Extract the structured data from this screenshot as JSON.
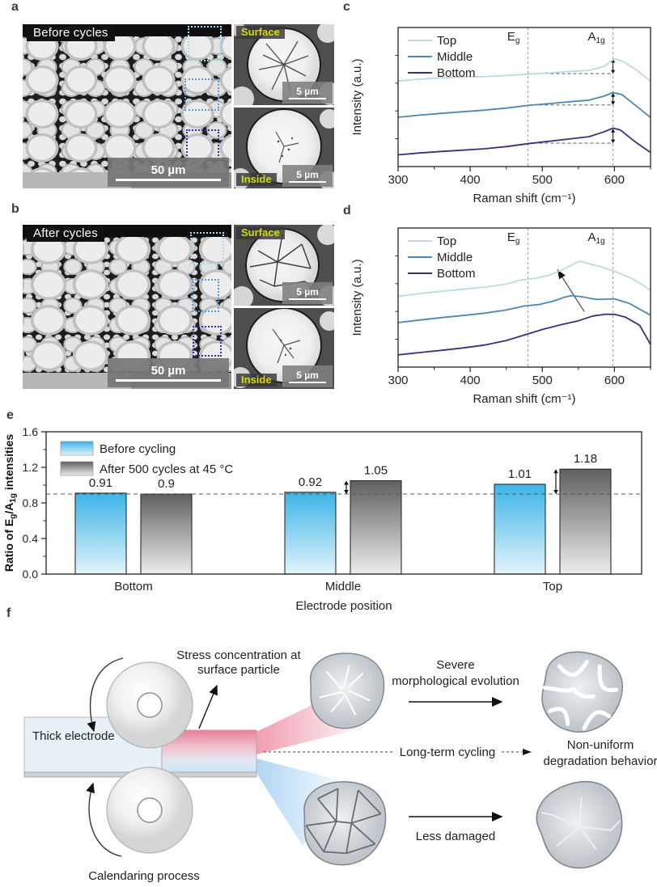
{
  "labels": {
    "a": "a",
    "b": "b",
    "c": "c",
    "d": "d",
    "e": "e",
    "f": "f"
  },
  "colors": {
    "dotted_boxes": [
      "#a8dcf0",
      "#5b9bd5",
      "#3232a8"
    ],
    "inset_label": "#d6de00",
    "spectra_series": [
      "#bcd9e4",
      "#4e86b4",
      "#33337b"
    ],
    "bar_blue_top": "#3cb4e7",
    "bar_blue_bottom": "#e2f4fc",
    "bar_gray_top": "#5f5f5f",
    "bar_gray_bottom": "#ededed"
  },
  "panel_a": {
    "tag": "Before cycles",
    "scale_main": "50 µm",
    "insets": [
      {
        "label": "Surface",
        "scale": "5 µm"
      },
      {
        "label": "Inside",
        "scale": "5 µm"
      }
    ]
  },
  "panel_b": {
    "tag": "After cycles",
    "scale_main": "50 µm",
    "insets": [
      {
        "label": "Surface",
        "scale": "5 µm"
      },
      {
        "label": "Inside",
        "scale": "5 µm"
      }
    ]
  },
  "chart_data": [
    {
      "panel": "c",
      "type": "line",
      "xlabel": "Raman shift (cm⁻¹)",
      "ylabel": "Intensity (a.u.)",
      "xlim": [
        300,
        650
      ],
      "xticks": [
        300,
        400,
        500,
        600
      ],
      "minor_xticks": [
        350,
        450,
        550,
        650
      ],
      "legend": [
        "Top",
        "Middle",
        "Bottom"
      ],
      "legend_position": "top-left",
      "grid": false,
      "eg": {
        "main": "E",
        "sub": "g",
        "x": 480
      },
      "a1g": {
        "main": "A",
        "sub": "1g",
        "x": 598
      },
      "annotation": "ratio-steps",
      "series": [
        {
          "name": "Top",
          "points": [
            [
              300,
              0.615
            ],
            [
              330,
              0.625
            ],
            [
              360,
              0.633
            ],
            [
              390,
              0.641
            ],
            [
              420,
              0.649
            ],
            [
              450,
              0.659
            ],
            [
              480,
              0.668
            ],
            [
              510,
              0.673
            ],
            [
              540,
              0.68
            ],
            [
              565,
              0.693
            ],
            [
              585,
              0.716
            ],
            [
              600,
              0.775
            ],
            [
              612,
              0.752
            ],
            [
              630,
              0.7
            ],
            [
              650,
              0.612
            ]
          ]
        },
        {
          "name": "Middle",
          "points": [
            [
              300,
              0.355
            ],
            [
              330,
              0.366
            ],
            [
              360,
              0.378
            ],
            [
              390,
              0.392
            ],
            [
              420,
              0.408
            ],
            [
              450,
              0.425
            ],
            [
              480,
              0.443
            ],
            [
              510,
              0.452
            ],
            [
              540,
              0.463
            ],
            [
              565,
              0.479
            ],
            [
              585,
              0.503
            ],
            [
              598,
              0.528
            ],
            [
              610,
              0.515
            ],
            [
              630,
              0.44
            ],
            [
              650,
              0.352
            ]
          ]
        },
        {
          "name": "Bottom",
          "points": [
            [
              300,
              0.085
            ],
            [
              330,
              0.094
            ],
            [
              360,
              0.104
            ],
            [
              390,
              0.116
            ],
            [
              420,
              0.13
            ],
            [
              450,
              0.148
            ],
            [
              480,
              0.168
            ],
            [
              510,
              0.181
            ],
            [
              540,
              0.196
            ],
            [
              565,
              0.216
            ],
            [
              585,
              0.246
            ],
            [
              598,
              0.272
            ],
            [
              608,
              0.262
            ],
            [
              630,
              0.176
            ],
            [
              650,
              0.1
            ]
          ]
        }
      ]
    },
    {
      "panel": "d",
      "type": "line",
      "xlabel": "Raman shift (cm⁻¹)",
      "ylabel": "Intensity (a.u.)",
      "xlim": [
        300,
        650
      ],
      "xticks": [
        300,
        400,
        500,
        600
      ],
      "minor_xticks": [
        350,
        450,
        550,
        650
      ],
      "legend": [
        "Top",
        "Middle",
        "Bottom"
      ],
      "legend_position": "top-left",
      "grid": false,
      "eg": {
        "main": "E",
        "sub": "g",
        "x": 480
      },
      "a1g": {
        "main": "A",
        "sub": "1g",
        "x": 598
      },
      "annotation": "shift-arrow",
      "arrow": {
        "from": [
          558,
          0.4
        ],
        "to": [
          521,
          0.7
        ]
      },
      "series": [
        {
          "name": "Top",
          "points": [
            [
              300,
              0.51
            ],
            [
              330,
              0.525
            ],
            [
              360,
              0.541
            ],
            [
              390,
              0.558
            ],
            [
              420,
              0.577
            ],
            [
              450,
              0.601
            ],
            [
              470,
              0.622
            ],
            [
              490,
              0.64
            ],
            [
              510,
              0.661
            ],
            [
              530,
              0.703
            ],
            [
              545,
              0.748
            ],
            [
              553,
              0.758
            ],
            [
              563,
              0.75
            ],
            [
              580,
              0.722
            ],
            [
              600,
              0.688
            ],
            [
              625,
              0.63
            ],
            [
              650,
              0.552
            ]
          ]
        },
        {
          "name": "Middle",
          "points": [
            [
              300,
              0.32
            ],
            [
              330,
              0.335
            ],
            [
              360,
              0.351
            ],
            [
              390,
              0.369
            ],
            [
              420,
              0.39
            ],
            [
              450,
              0.415
            ],
            [
              475,
              0.44
            ],
            [
              495,
              0.451
            ],
            [
              515,
              0.471
            ],
            [
              530,
              0.5
            ],
            [
              540,
              0.51
            ],
            [
              555,
              0.501
            ],
            [
              575,
              0.49
            ],
            [
              600,
              0.49
            ],
            [
              620,
              0.462
            ],
            [
              650,
              0.372
            ]
          ]
        },
        {
          "name": "Bottom",
          "points": [
            [
              300,
              0.088
            ],
            [
              330,
              0.101
            ],
            [
              360,
              0.116
            ],
            [
              390,
              0.136
            ],
            [
              420,
              0.161
            ],
            [
              450,
              0.196
            ],
            [
              475,
              0.231
            ],
            [
              500,
              0.266
            ],
            [
              525,
              0.301
            ],
            [
              550,
              0.336
            ],
            [
              570,
              0.363
            ],
            [
              588,
              0.383
            ],
            [
              600,
              0.378
            ],
            [
              615,
              0.361
            ],
            [
              635,
              0.301
            ],
            [
              650,
              0.162
            ]
          ]
        }
      ]
    },
    {
      "panel": "e",
      "type": "bar",
      "categories": [
        "Bottom",
        "Middle",
        "Top"
      ],
      "series": [
        {
          "name": "Before cycling",
          "values": [
            0.91,
            0.92,
            1.01
          ]
        },
        {
          "name": "After 500 cycles at 45 °C",
          "values": [
            0.9,
            1.05,
            1.18
          ]
        }
      ],
      "value_labels": [
        [
          "0.91",
          "0.9"
        ],
        [
          "0.92",
          "1.05"
        ],
        [
          "1.01",
          "1.18"
        ]
      ],
      "ylim": [
        0,
        1.6
      ],
      "yticks": [
        0,
        0.4,
        0.8,
        1.2,
        1.6
      ],
      "ytick_labels": [
        "0.0",
        "0.4",
        "0.8",
        "1.2",
        "1.6"
      ],
      "minor_yticks": [
        0.2,
        0.6,
        1.0,
        1.4
      ],
      "baseline": 0.9,
      "xlabel": "Electrode position",
      "ylabel_parts": [
        {
          "t": "Ratio of E"
        },
        {
          "t": "g",
          "sub": true
        },
        {
          "t": "/A"
        },
        {
          "t": "1g",
          "sub": true
        },
        {
          "t": " intensities"
        }
      ],
      "diff_arrows": [
        {
          "category": "Middle",
          "from": 0.9,
          "to": 1.05
        },
        {
          "category": "Top",
          "from": 0.9,
          "to": 1.18
        }
      ],
      "legend_position": "top-left",
      "grid": false
    }
  ],
  "panel_f": {
    "thick_electrode": "Thick electrode",
    "stress_line1": "Stress concentration at",
    "stress_line2": "surface particle",
    "calendaring": "Calendaring process",
    "severe_line1": "Severe",
    "severe_line2": "morphological evolution",
    "long_term": "Long-term cycling",
    "nonuniform_line1": "Non-uniform",
    "nonuniform_line2": "degradation behavior",
    "less_damaged": "Less damaged"
  }
}
